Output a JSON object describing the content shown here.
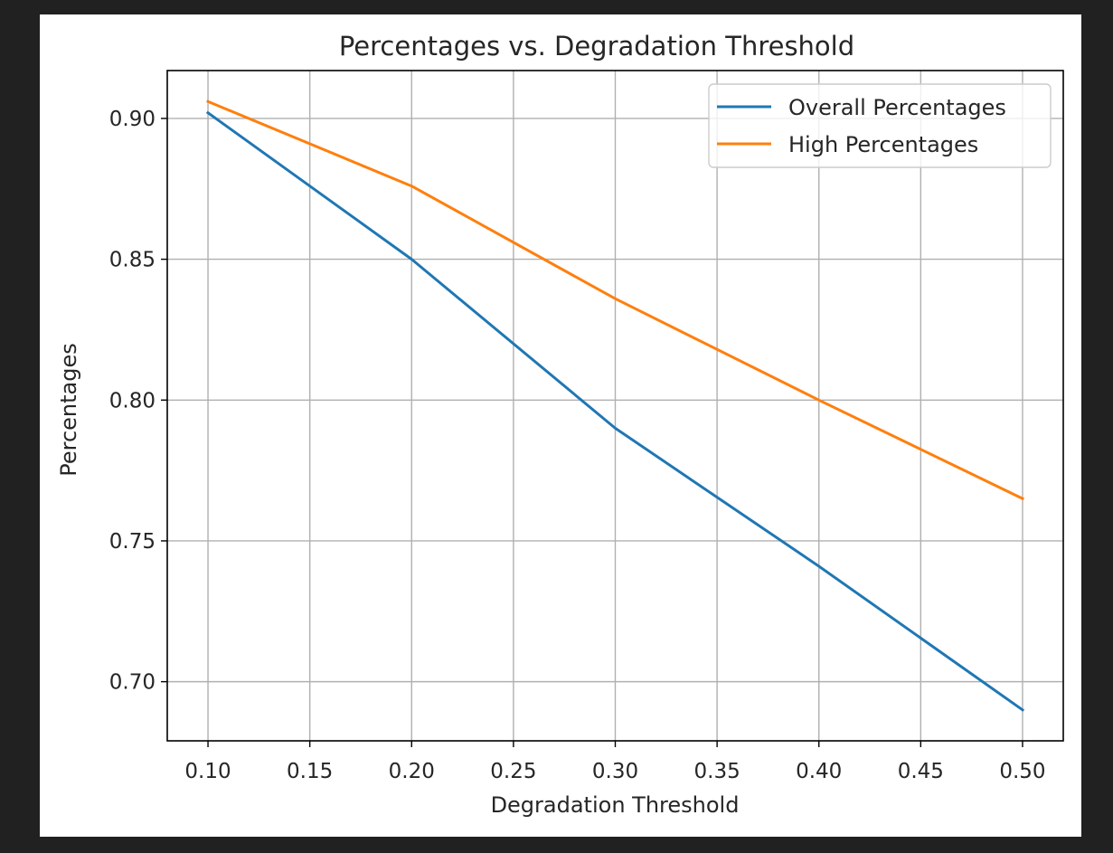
{
  "chart_data": {
    "type": "line",
    "title": "Percentages vs. Degradation Threshold",
    "xlabel": "Degradation Threshold",
    "ylabel": "Percentages",
    "x": [
      0.1,
      0.2,
      0.3,
      0.4,
      0.5
    ],
    "series": [
      {
        "name": "Overall Percentages",
        "color": "#1f77b4",
        "values": [
          0.902,
          0.85,
          0.79,
          0.741,
          0.69
        ]
      },
      {
        "name": "High Percentages",
        "color": "#ff7f0e",
        "values": [
          0.906,
          0.876,
          0.836,
          0.8,
          0.765
        ]
      }
    ],
    "xlim": [
      0.08,
      0.52
    ],
    "ylim": [
      0.679,
      0.917
    ],
    "xticks": [
      "0.10",
      "0.15",
      "0.20",
      "0.25",
      "0.30",
      "0.35",
      "0.40",
      "0.45",
      "0.50"
    ],
    "yticks": [
      "0.70",
      "0.75",
      "0.80",
      "0.85",
      "0.90"
    ],
    "grid": true,
    "legend_position": "top-right"
  }
}
